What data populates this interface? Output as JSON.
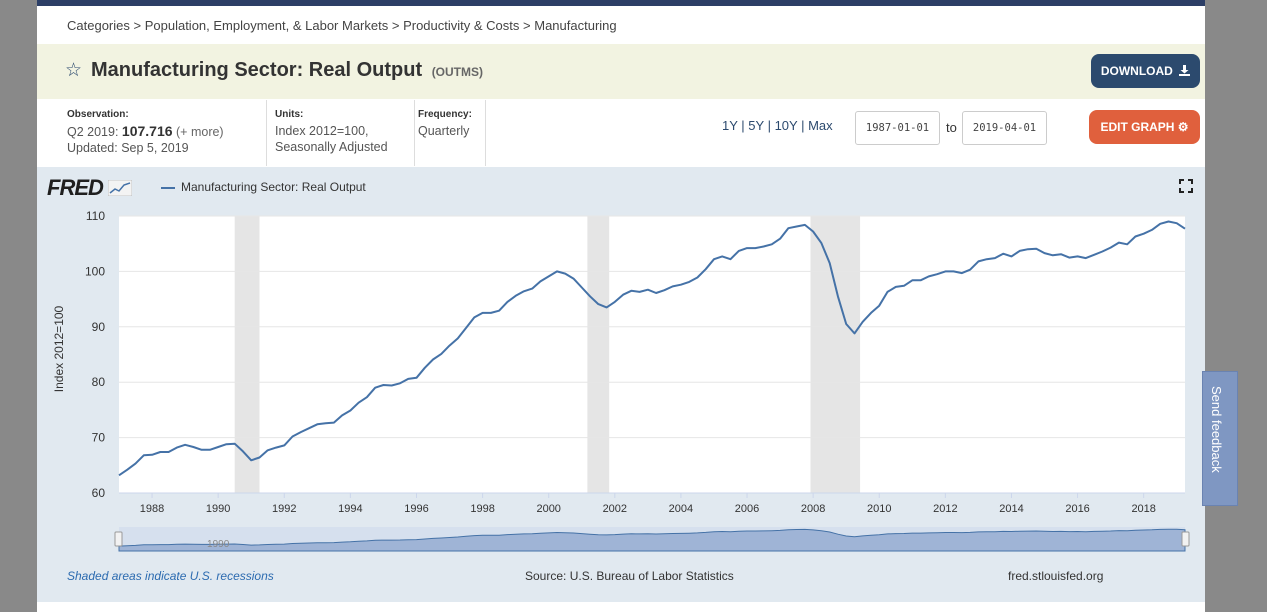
{
  "breadcrumb": {
    "items": [
      "Categories",
      "Population, Employment, & Labor Markets",
      "Productivity & Costs",
      "Manufacturing"
    ],
    "separator": ">"
  },
  "header": {
    "title": "Manufacturing Sector: Real Output",
    "code": "(OUTMS)",
    "download_label": "DOWNLOAD",
    "star_icon": "star-icon",
    "download_icon": "download-icon"
  },
  "meta": {
    "observation_label": "Observation:",
    "observation_period": "Q2 2019:",
    "observation_value": "107.716",
    "observation_more": "(+ more)",
    "updated": "Updated: Sep 5, 2019",
    "units_label": "Units:",
    "units_line1": "Index 2012=100,",
    "units_line2": "Seasonally Adjusted",
    "frequency_label": "Frequency:",
    "frequency_value": "Quarterly"
  },
  "controls": {
    "ranges": [
      "1Y",
      "5Y",
      "10Y",
      "Max"
    ],
    "start_date": "1987-01-01",
    "to_label": "to",
    "end_date": "2019-04-01",
    "edit_label": "EDIT GRAPH",
    "edit_icon": "gear-icon"
  },
  "graph": {
    "logo": "FRED",
    "legend_label": "Manufacturing Sector: Real Output",
    "expand_icon": "expand-icon",
    "line_color": "#4572a7",
    "recession_color": "#e5e5e5",
    "navigator_label": "1990"
  },
  "chart_data": {
    "type": "line",
    "title": "",
    "xlabel": "",
    "ylabel": "Index 2012=100",
    "ylim": [
      60,
      110
    ],
    "yticks": [
      60,
      70,
      80,
      90,
      100,
      110
    ],
    "xlim": [
      1987.0,
      2019.25
    ],
    "xticks": [
      1988,
      1990,
      1992,
      1994,
      1996,
      1998,
      2000,
      2002,
      2004,
      2006,
      2008,
      2010,
      2012,
      2014,
      2016,
      2018
    ],
    "grid": true,
    "legend": "top-left",
    "recessions": [
      [
        1990.5,
        1991.25
      ],
      [
        2001.17,
        2001.83
      ],
      [
        2007.92,
        2009.42
      ]
    ],
    "series": [
      {
        "name": "Manufacturing Sector: Real Output",
        "x": [
          1987.0,
          1987.25,
          1987.5,
          1987.75,
          1988.0,
          1988.25,
          1988.5,
          1988.75,
          1989.0,
          1989.25,
          1989.5,
          1989.75,
          1990.0,
          1990.25,
          1990.5,
          1990.75,
          1991.0,
          1991.25,
          1991.5,
          1991.75,
          1992.0,
          1992.25,
          1992.5,
          1992.75,
          1993.0,
          1993.25,
          1993.5,
          1993.75,
          1994.0,
          1994.25,
          1994.5,
          1994.75,
          1995.0,
          1995.25,
          1995.5,
          1995.75,
          1996.0,
          1996.25,
          1996.5,
          1996.75,
          1997.0,
          1997.25,
          1997.5,
          1997.75,
          1998.0,
          1998.25,
          1998.5,
          1998.75,
          1999.0,
          1999.25,
          1999.5,
          1999.75,
          2000.0,
          2000.25,
          2000.5,
          2000.75,
          2001.0,
          2001.25,
          2001.5,
          2001.75,
          2002.0,
          2002.25,
          2002.5,
          2002.75,
          2003.0,
          2003.25,
          2003.5,
          2003.75,
          2004.0,
          2004.25,
          2004.5,
          2004.75,
          2005.0,
          2005.25,
          2005.5,
          2005.75,
          2006.0,
          2006.25,
          2006.5,
          2006.75,
          2007.0,
          2007.25,
          2007.5,
          2007.75,
          2008.0,
          2008.25,
          2008.5,
          2008.75,
          2009.0,
          2009.25,
          2009.5,
          2009.75,
          2010.0,
          2010.25,
          2010.5,
          2010.75,
          2011.0,
          2011.25,
          2011.5,
          2011.75,
          2012.0,
          2012.25,
          2012.5,
          2012.75,
          2013.0,
          2013.25,
          2013.5,
          2013.75,
          2014.0,
          2014.25,
          2014.5,
          2014.75,
          2015.0,
          2015.25,
          2015.5,
          2015.75,
          2016.0,
          2016.25,
          2016.5,
          2016.75,
          2017.0,
          2017.25,
          2017.5,
          2017.75,
          2018.0,
          2018.25,
          2018.5,
          2018.75,
          2019.0,
          2019.25
        ],
        "values": [
          63.2,
          64.2,
          65.3,
          66.8,
          66.9,
          67.4,
          67.4,
          68.2,
          68.7,
          68.3,
          67.8,
          67.8,
          68.3,
          68.8,
          68.9,
          67.5,
          65.9,
          66.4,
          67.7,
          68.2,
          68.6,
          70.2,
          71.0,
          71.7,
          72.4,
          72.6,
          72.7,
          74.0,
          74.9,
          76.3,
          77.3,
          79.0,
          79.5,
          79.4,
          79.8,
          80.6,
          80.8,
          82.6,
          84.1,
          85.1,
          86.6,
          87.9,
          89.8,
          91.7,
          92.5,
          92.5,
          92.9,
          94.5,
          95.6,
          96.4,
          96.9,
          98.2,
          99.1,
          100.0,
          99.6,
          98.7,
          97.1,
          95.5,
          94.1,
          93.5,
          94.5,
          95.8,
          96.5,
          96.3,
          96.7,
          96.1,
          96.6,
          97.3,
          97.6,
          98.1,
          98.9,
          100.4,
          102.2,
          102.7,
          102.2,
          103.7,
          104.2,
          104.2,
          104.5,
          104.9,
          105.9,
          107.8,
          108.1,
          108.4,
          107.2,
          105.1,
          101.5,
          95.5,
          90.5,
          88.8,
          90.9,
          92.5,
          93.8,
          96.3,
          97.2,
          97.4,
          98.4,
          98.4,
          99.1,
          99.5,
          100.0,
          100.0,
          99.7,
          100.3,
          101.8,
          102.2,
          102.4,
          103.2,
          102.7,
          103.7,
          104.0,
          104.1,
          103.3,
          102.9,
          103.1,
          102.5,
          102.7,
          102.4,
          103.0,
          103.6,
          104.3,
          105.2,
          104.9,
          106.3,
          106.8,
          107.5,
          108.6,
          109.0,
          108.7,
          107.7
        ]
      }
    ]
  },
  "footer": {
    "note": "Shaded areas indicate U.S. recessions",
    "source": "Source: U.S. Bureau of Labor Statistics",
    "url": "fred.stlouisfed.org"
  },
  "feedback": {
    "label": "Send feedback"
  }
}
